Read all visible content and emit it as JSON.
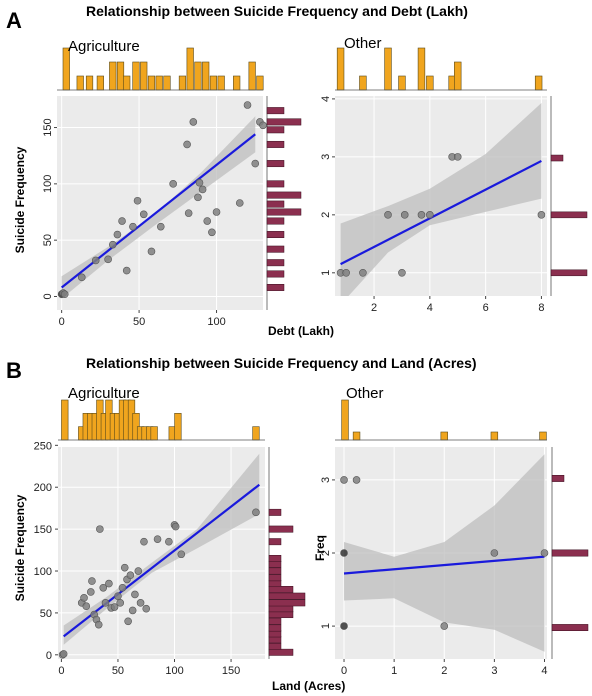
{
  "colors": {
    "panel_bg": "#ebebeb",
    "grid": "#ffffff",
    "point": "#7f7f7f",
    "fit_line": "#1a1adc",
    "ci_band": "#bdbdbd",
    "top_hist": "#f0a51e",
    "right_hist": "#8b2f4f"
  },
  "sections": [
    {
      "label": "A",
      "title": "Relationship between Suicide Frequency and Debt (Lakh)"
    },
    {
      "label": "B",
      "title": "Relationship between Suicide Frequency and Land (Acres)"
    }
  ],
  "chart_data": [
    {
      "id": "A-agriculture",
      "type": "scatter",
      "subtitle": "Agriculture",
      "xlabel": "Debt (Lakh)",
      "ylabel": "Suicide Frequency",
      "xlim": [
        -3,
        130
      ],
      "ylim": [
        -12,
        178
      ],
      "xticks": [
        0,
        50,
        100
      ],
      "yticks": [
        0,
        50,
        100,
        150
      ],
      "ytick_rotation": -90,
      "points": [
        [
          0,
          2
        ],
        [
          1,
          3
        ],
        [
          2,
          2
        ],
        [
          13,
          17
        ],
        [
          22,
          32
        ],
        [
          30,
          33
        ],
        [
          33,
          46
        ],
        [
          36,
          55
        ],
        [
          39,
          67
        ],
        [
          42,
          23
        ],
        [
          46,
          62
        ],
        [
          49,
          85
        ],
        [
          53,
          73
        ],
        [
          58,
          40
        ],
        [
          64,
          62
        ],
        [
          72,
          100
        ],
        [
          81,
          135
        ],
        [
          82,
          74
        ],
        [
          85,
          155
        ],
        [
          88,
          88
        ],
        [
          89,
          101
        ],
        [
          91,
          95
        ],
        [
          94,
          67
        ],
        [
          97,
          57
        ],
        [
          100,
          75
        ],
        [
          115,
          83
        ],
        [
          120,
          170
        ],
        [
          125,
          118
        ],
        [
          128,
          155
        ],
        [
          130,
          152
        ]
      ],
      "fit": {
        "x": [
          0,
          125
        ],
        "y": [
          8,
          144
        ]
      },
      "ci": {
        "x": [
          0,
          30,
          60,
          90,
          125
        ],
        "lower": [
          -2,
          32,
          63,
          93,
          128
        ],
        "upper": [
          18,
          44,
          73,
          110,
          160
        ]
      },
      "top_hist": {
        "x": [
          3,
          12,
          18,
          25,
          33,
          38,
          42,
          48,
          53,
          58,
          63,
          68,
          78,
          83,
          88,
          93,
          98,
          103,
          113,
          123,
          128
        ],
        "count": [
          3,
          1,
          1,
          1,
          2,
          2,
          1,
          2,
          2,
          1,
          1,
          1,
          1,
          3,
          2,
          2,
          1,
          1,
          1,
          2,
          1
        ]
      },
      "right_hist": {
        "y": [
          8,
          20,
          30,
          42,
          55,
          67,
          75,
          82,
          90,
          100,
          118,
          135,
          148,
          155,
          165
        ],
        "count": [
          1,
          1,
          1,
          1,
          1,
          1,
          2,
          1,
          2,
          1,
          1,
          1,
          1,
          2,
          1
        ]
      }
    },
    {
      "id": "A-other",
      "type": "scatter",
      "subtitle": "Other",
      "xlabel": "",
      "ylabel": "",
      "xlim": [
        0.6,
        8.2
      ],
      "ylim": [
        0.6,
        4.05
      ],
      "xticks": [
        2,
        4,
        6,
        8
      ],
      "yticks": [
        1,
        2,
        3,
        4
      ],
      "ytick_rotation": -90,
      "points": [
        [
          0.8,
          1
        ],
        [
          1.0,
          1
        ],
        [
          1.6,
          1
        ],
        [
          2.5,
          2
        ],
        [
          3.0,
          1
        ],
        [
          3.1,
          2
        ],
        [
          3.7,
          2
        ],
        [
          4.0,
          2
        ],
        [
          4.8,
          3
        ],
        [
          5.0,
          3
        ],
        [
          8.0,
          2
        ]
      ],
      "fit": {
        "x": [
          0.8,
          8.0
        ],
        "y": [
          1.15,
          2.93
        ]
      },
      "ci": {
        "x": [
          0.8,
          2.5,
          4.0,
          6.0,
          8.0
        ],
        "lower": [
          0.45,
          1.35,
          1.82,
          2.05,
          2.28
        ],
        "upper": [
          1.85,
          2.15,
          2.45,
          3.05,
          3.93
        ]
      },
      "top_hist": {
        "x": [
          0.8,
          1.6,
          2.5,
          3.0,
          3.7,
          4.0,
          4.8,
          5.0,
          7.9
        ],
        "count": [
          3,
          1,
          3,
          1,
          3,
          1,
          1,
          2,
          1
        ]
      },
      "right_hist": {
        "y": [
          1,
          2,
          2.98
        ],
        "count": [
          3,
          3,
          1
        ]
      }
    },
    {
      "id": "B-agriculture",
      "type": "scatter",
      "subtitle": "Agriculture",
      "xlabel": "Land (Acres)",
      "ylabel": "Suicide Frequency",
      "xlim": [
        -3,
        180
      ],
      "ylim": [
        -5,
        248
      ],
      "xticks": [
        0,
        50,
        100,
        150
      ],
      "yticks": [
        0,
        50,
        100,
        150,
        200,
        250
      ],
      "ytick_rotation": 0,
      "points": [
        [
          1,
          0
        ],
        [
          2,
          1
        ],
        [
          18,
          62
        ],
        [
          20,
          68
        ],
        [
          22,
          58
        ],
        [
          26,
          75
        ],
        [
          27,
          88
        ],
        [
          29,
          48
        ],
        [
          31,
          42
        ],
        [
          33,
          36
        ],
        [
          34,
          150
        ],
        [
          37,
          80
        ],
        [
          39,
          62
        ],
        [
          42,
          85
        ],
        [
          44,
          56
        ],
        [
          47,
          57
        ],
        [
          50,
          70
        ],
        [
          52,
          62
        ],
        [
          54,
          80
        ],
        [
          56,
          104
        ],
        [
          58,
          90
        ],
        [
          59,
          40
        ],
        [
          61,
          95
        ],
        [
          63,
          53
        ],
        [
          65,
          72
        ],
        [
          68,
          100
        ],
        [
          70,
          62
        ],
        [
          73,
          135
        ],
        [
          75,
          55
        ],
        [
          85,
          138
        ],
        [
          95,
          135
        ],
        [
          100,
          155
        ],
        [
          101,
          153
        ],
        [
          106,
          120
        ],
        [
          172,
          170
        ]
      ],
      "fit": {
        "x": [
          2,
          175
        ],
        "y": [
          22,
          203
        ]
      },
      "ci": {
        "x": [
          2,
          40,
          80,
          120,
          175
        ],
        "lower": [
          12,
          55,
          98,
          127,
          168
        ],
        "upper": [
          35,
          69,
          110,
          150,
          240
        ]
      },
      "top_hist": {
        "x": [
          3,
          18,
          22,
          26,
          30,
          34,
          38,
          42,
          46,
          50,
          54,
          58,
          62,
          66,
          70,
          74,
          78,
          82,
          98,
          103,
          172
        ],
        "count": [
          3,
          1,
          2,
          2,
          2,
          3,
          2,
          3,
          2,
          2,
          3,
          3,
          3,
          2,
          1,
          1,
          1,
          1,
          1,
          2,
          1
        ]
      },
      "right_hist": {
        "y": [
          3,
          10,
          18,
          25,
          32,
          40,
          48,
          55,
          62,
          70,
          78,
          85,
          92,
          100,
          108,
          115,
          135,
          150,
          170
        ],
        "count": [
          2,
          1,
          1,
          1,
          1,
          1,
          2,
          2,
          3,
          3,
          2,
          1,
          1,
          1,
          1,
          1,
          1,
          2,
          1
        ]
      }
    },
    {
      "id": "B-other",
      "type": "scatter",
      "subtitle": "Other",
      "xlabel": "",
      "ylabel": "Freq",
      "xlim": [
        -0.18,
        4.05
      ],
      "ylim": [
        0.55,
        3.45
      ],
      "xticks": [
        0,
        1,
        2,
        3,
        4
      ],
      "yticks": [
        1,
        2,
        3
      ],
      "ytick_rotation": -90,
      "points": [
        [
          0,
          1
        ],
        [
          0,
          2
        ],
        [
          0,
          3
        ],
        [
          0.25,
          3
        ],
        [
          2,
          1
        ],
        [
          3,
          2
        ],
        [
          4,
          2
        ]
      ],
      "fit": {
        "x": [
          0,
          4
        ],
        "y": [
          1.72,
          1.95
        ]
      },
      "ci": {
        "x": [
          0,
          1,
          2,
          3,
          4
        ],
        "lower": [
          1.35,
          1.38,
          1.05,
          0.95,
          0.65
        ],
        "upper": [
          2.15,
          1.95,
          2.15,
          2.65,
          3.35
        ]
      },
      "top_hist": {
        "x": [
          0.02,
          0.25,
          2.0,
          3.0,
          3.97
        ],
        "count": [
          5,
          1,
          1,
          1,
          1
        ]
      },
      "right_hist": {
        "y": [
          0.98,
          2.0,
          3.02
        ],
        "count": [
          3,
          3,
          1
        ]
      }
    }
  ]
}
